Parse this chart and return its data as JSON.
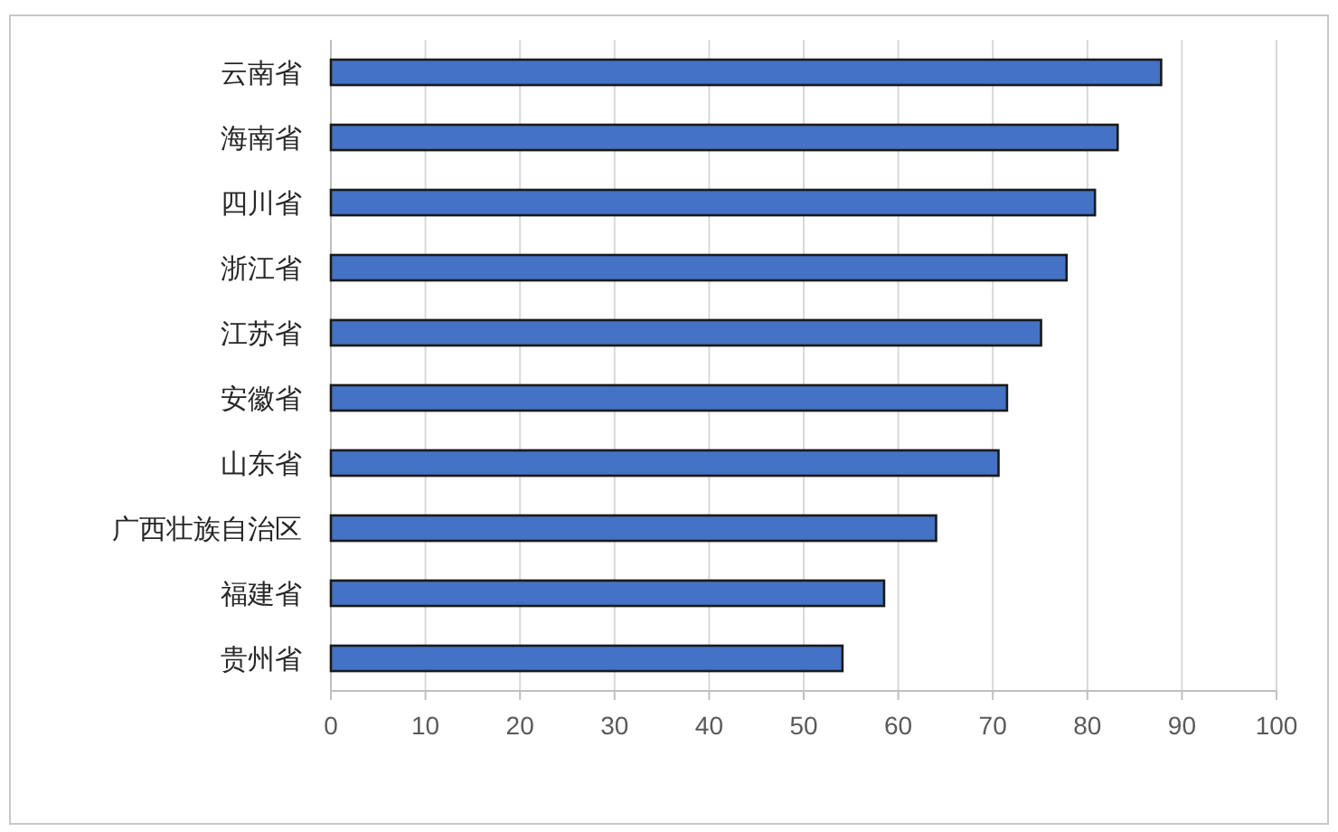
{
  "chart_data": {
    "type": "bar",
    "orientation": "horizontal",
    "categories": [
      "云南省",
      "海南省",
      "四川省",
      "浙江省",
      "江苏省",
      "安徽省",
      "山东省",
      "广西壮族自治区",
      "福建省",
      "贵州省"
    ],
    "values": [
      87.8,
      83.2,
      80.8,
      77.8,
      75.1,
      71.5,
      70.6,
      64.0,
      58.5,
      54.1
    ],
    "color": "#4472c4",
    "xlim": [
      0,
      100
    ],
    "xticks": [
      0,
      10,
      20,
      30,
      40,
      50,
      60,
      70,
      80,
      90,
      100
    ],
    "grid": "x"
  }
}
